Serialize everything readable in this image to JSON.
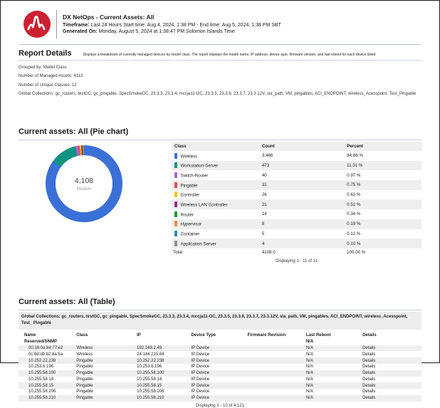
{
  "header": {
    "title": "DX NetOps - Current Assets: All",
    "timeframe_label": "Timeframe:",
    "timeframe_value": " Last 24 Hours  Start time: Aug 4, 2024, 1:38 PM - End time: Aug 5, 2024, 1:38 PM SBT",
    "generated_label": "Generated On:",
    "generated_value": " Monday, August 5, 2024 at 1:38:47 PM Solomon Islands Time",
    "logo_icon": "broadcom-pulse-logo",
    "logo_color": "#CC2131"
  },
  "report_details": {
    "title": "Report Details",
    "description": "Displays a breakdown of currently managed devices by model class. The report displays the model name, IP address, device type, firmware version, and last reboot for each device listed",
    "grouped_by": "Grouped by: Model Class",
    "managed_assets": "Number of Managed Assets: 4113",
    "unique_classes": "Number of Unique Classes: 12",
    "global_collections": "Global Collections: gc_routers, testGC, gc_pingable, SpecSmokeGC, 23.3.3, 23.3.4, mccja11-GC, 23.3.5, 23.3.6, 23.3.7, 23.3.12V, sla_path, VM, pingables, ACI_ENDPOINT, wireless_Acesspoint, Test_Pingable"
  },
  "pie_section": {
    "title": "Current assets: All (Pie chart)",
    "center_value": "4,108",
    "center_label": "Models",
    "columns": [
      "Class",
      "Count",
      "Percent"
    ],
    "rows": [
      {
        "label": "Wireless",
        "count": "3,486",
        "percent": "84.86 %",
        "color": "#3B70D6"
      },
      {
        "label": "Workstation-Server",
        "count": "473",
        "percent": "11.51 %",
        "color": "#0E9382"
      },
      {
        "label": "Switch-Router",
        "count": "40",
        "percent": "0.97 %",
        "color": "#A869D6"
      },
      {
        "label": "Pingable",
        "count": "31",
        "percent": "0.75 %",
        "color": "#E9476F"
      },
      {
        "label": "Controller",
        "count": "26",
        "percent": "0.63 %",
        "color": "#F2C40E"
      },
      {
        "label": "Wireless LAN Controller",
        "count": "21",
        "percent": "0.51 %",
        "color": "#9A2D9A"
      },
      {
        "label": "Router",
        "count": "14",
        "percent": "0.34 %",
        "color": "#169C36"
      },
      {
        "label": "Hypervisor",
        "count": "8",
        "percent": "0.19 %",
        "color": "#F08B45"
      },
      {
        "label": "Container",
        "count": "5",
        "percent": "0.12 %",
        "color": "#2E8FA5"
      },
      {
        "label": "Application Server",
        "count": "4",
        "percent": "0.10 %",
        "color": "#9A9083"
      }
    ],
    "total_label": "Total",
    "total_count": "4108.0",
    "total_percent": "100.00 %",
    "paging": "Displaying 1 - 11 of 11"
  },
  "table_section": {
    "title": "Current assets: All (Table)",
    "collections_bar": "Global Collections: gc_routers, testGC, gc_pingable, SpecSmokeGC, 23.3.3, 23.3.4, mccja11-GC, 23.3.5, 23.3.6, 23.3.7, 23.3.12V, sla_path, VM, pingables, ACI_ENDPOINT, wireless_Acesspoint, Test_ Pingable",
    "columns": [
      "Name",
      "Class",
      "IP",
      "Device Type",
      "Firmware Revision",
      "Last Reboot",
      "Details"
    ],
    "group_row": {
      "name": "Reserved/SNMP",
      "last_reboot": "N/A"
    },
    "rows": [
      {
        "name": "00:18:0a:84:77:e2",
        "class": "Wireless",
        "ip": "192.168.2.49",
        "device_type": "IP Device",
        "firmware": "",
        "last_reboot": "N/A",
        "details": "Details"
      },
      {
        "name": "0c:8d:db:b2:8a:5a",
        "class": "Wireless",
        "ip": "24.144.215.84",
        "device_type": "IP Device",
        "firmware": "",
        "last_reboot": "N/A",
        "details": "Details"
      },
      {
        "name": "10.252.22.238",
        "class": "Pingable",
        "ip": "10.252.22.238",
        "device_type": "IP Device",
        "firmware": "",
        "last_reboot": "N/A",
        "details": "Details"
      },
      {
        "name": "10.253.6.196",
        "class": "Pingable",
        "ip": "10.253.6.196",
        "device_type": "IP Device",
        "firmware": "",
        "last_reboot": "N/A",
        "details": "Details"
      },
      {
        "name": "10.255.58.100",
        "class": "Pingable",
        "ip": "10.255.58.100",
        "device_type": "IP Device",
        "firmware": "",
        "last_reboot": "N/A",
        "details": "Details"
      },
      {
        "name": "10.255.58.14",
        "class": "Pingable",
        "ip": "10.255.58.14",
        "device_type": "IP Device",
        "firmware": "",
        "last_reboot": "N/A",
        "details": "Details"
      },
      {
        "name": "10.255.58.15",
        "class": "Pingable",
        "ip": "10.255.58.15",
        "device_type": "IP Device",
        "firmware": "",
        "last_reboot": "N/A",
        "details": "Details"
      },
      {
        "name": "10.255.58.206",
        "class": "Pingable",
        "ip": "10.255.58.206",
        "device_type": "IP Device",
        "firmware": "",
        "last_reboot": "N/A",
        "details": "Details"
      },
      {
        "name": "10.255.58.210",
        "class": "Pingable",
        "ip": "10.255.58.210",
        "device_type": "IP Device",
        "firmware": "",
        "last_reboot": "N/A",
        "details": "Details"
      }
    ],
    "paging": "Displaying 1 - 10 of 4,121"
  },
  "chart_data": {
    "type": "pie",
    "title": "Current assets: All (Pie chart)",
    "categories": [
      "Wireless",
      "Workstation-Server",
      "Switch-Router",
      "Pingable",
      "Controller",
      "Wireless LAN Controller",
      "Router",
      "Hypervisor",
      "Container",
      "Application Server"
    ],
    "values": [
      3486,
      473,
      40,
      31,
      26,
      21,
      14,
      8,
      5,
      4
    ],
    "percents": [
      84.86,
      11.51,
      0.97,
      0.75,
      0.63,
      0.51,
      0.34,
      0.19,
      0.12,
      0.1
    ],
    "colors": [
      "#3B70D6",
      "#0E9382",
      "#A869D6",
      "#E9476F",
      "#F2C40E",
      "#9A2D9A",
      "#169C36",
      "#F08B45",
      "#2E8FA5",
      "#9A9083"
    ],
    "total": 4108,
    "center_label": "4,108 Models",
    "donut": true,
    "legend_position": "right-table"
  }
}
